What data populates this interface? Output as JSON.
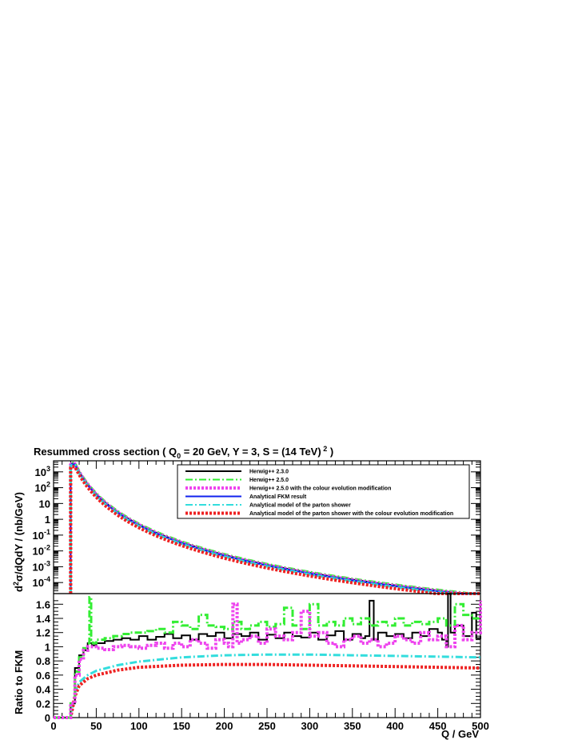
{
  "chart_data": [
    {
      "panel": "top",
      "type": "line",
      "title": "Resummed cross section ( Q",
      "title_sub": "0",
      "title_rest": " = 20 GeV, Y = 3, S = (14 TeV)",
      "title_sup": " 2",
      "title_end": " )",
      "ylabel_base": "d",
      "ylabel_sup": "2",
      "ylabel_rest": "σ/dQdY / (nb/GeV)",
      "yscale": "log",
      "xlim": [
        0,
        500
      ],
      "ylim": [
        2e-05,
        5000
      ],
      "ytick_labels": [
        {
          "v": 1000,
          "base": "10",
          "exp": "3"
        },
        {
          "v": 100,
          "base": "10",
          "exp": "2"
        },
        {
          "v": 10,
          "base": "10",
          "exp": ""
        },
        {
          "v": 1,
          "base": "1",
          "exp": ""
        },
        {
          "v": 0.1,
          "base": "10",
          "exp": "-1"
        },
        {
          "v": 0.01,
          "base": "10",
          "exp": "-2"
        },
        {
          "v": 0.001,
          "base": "10",
          "exp": "-3"
        },
        {
          "v": 0.0001,
          "base": "10",
          "exp": "-4"
        }
      ],
      "legend": [
        {
          "name": "Herwig++ 2.3.0",
          "color": "#000000",
          "style": "solid"
        },
        {
          "name": "Herwig++ 2.5.0",
          "color": "#33ee33",
          "style": "dashdot"
        },
        {
          "name": "Herwig++ 2.5.0 with the colour evolution modification",
          "color": "#ee44ee",
          "style": "dotted"
        },
        {
          "name": "Analytical FKM result",
          "color": "#1122ee",
          "style": "solid"
        },
        {
          "name": "Analytical model of the parton shower",
          "color": "#33dddd",
          "style": "dashdot"
        },
        {
          "name": "Analytical model of the parton shower with the colour evolution modification",
          "color": "#ee2222",
          "style": "dotted"
        }
      ],
      "model": {
        "threshold": 20,
        "peak": 3000,
        "peak_x": 25,
        "power": 6.4
      },
      "series_scale": [
        {
          "name": "Herwig++ 2.3.0",
          "factor": 1.12
        },
        {
          "name": "Herwig++ 2.5.0",
          "factor": 1.25
        },
        {
          "name": "Herwig++ 2.5.0 with the colour evolution modification",
          "factor": 1.08
        },
        {
          "name": "Analytical FKM result",
          "factor": 1.0
        },
        {
          "name": "Analytical model of the parton shower",
          "factor": 0.88
        },
        {
          "name": "Analytical model of the parton shower with the colour evolution modification",
          "factor": 0.7
        }
      ]
    },
    {
      "panel": "bottom",
      "type": "line",
      "xlabel": "Q / GeV",
      "ylabel": "Ratio to FKM",
      "xlim": [
        0,
        500
      ],
      "ylim": [
        0,
        1.75
      ],
      "xticks": [
        0,
        50,
        100,
        150,
        200,
        250,
        300,
        350,
        400,
        450,
        500
      ],
      "yticks": [
        0,
        0.2,
        0.4,
        0.6,
        0.8,
        1,
        1.2,
        1.4,
        1.6
      ],
      "ytick_labels": [
        "0",
        "0.2",
        "0.4",
        "0.6",
        "0.8",
        "1",
        "1.2",
        "1.4",
        "1.6"
      ],
      "series": [
        {
          "name": "Analytical model of the parton shower",
          "color": "#33dddd",
          "x": [
            20,
            25,
            30,
            40,
            50,
            75,
            100,
            150,
            200,
            250,
            300,
            350,
            400,
            450,
            500
          ],
          "values": [
            0,
            0.35,
            0.5,
            0.6,
            0.66,
            0.74,
            0.79,
            0.85,
            0.88,
            0.89,
            0.89,
            0.88,
            0.87,
            0.86,
            0.85
          ]
        },
        {
          "name": "Analytical model of the parton shower with the colour evolution modification",
          "color": "#ee2222",
          "x": [
            20,
            25,
            30,
            40,
            50,
            75,
            100,
            150,
            200,
            250,
            300,
            350,
            400,
            450,
            500
          ],
          "values": [
            0,
            0.3,
            0.45,
            0.55,
            0.6,
            0.67,
            0.71,
            0.74,
            0.75,
            0.75,
            0.74,
            0.73,
            0.72,
            0.71,
            0.7
          ]
        },
        {
          "name": "Herwig++ 2.3.0",
          "color": "#000000",
          "x": [
            20,
            25,
            30,
            35,
            40,
            45,
            50,
            60,
            70,
            80,
            90,
            100,
            110,
            120,
            130,
            140,
            150,
            160,
            170,
            180,
            190,
            200,
            210,
            220,
            230,
            240,
            250,
            260,
            270,
            280,
            290,
            300,
            310,
            320,
            330,
            340,
            350,
            360,
            365,
            370,
            375,
            380,
            390,
            400,
            410,
            420,
            430,
            440,
            450,
            455,
            460,
            462,
            465,
            470,
            480,
            490,
            495,
            500
          ],
          "values": [
            0.2,
            0.7,
            0.88,
            0.95,
            1.05,
            1.02,
            1.05,
            1.08,
            1.1,
            1.12,
            1.1,
            1.15,
            1.1,
            1.14,
            1.18,
            1.12,
            1.16,
            1.1,
            1.18,
            1.15,
            1.2,
            1.12,
            1.18,
            1.15,
            1.2,
            1.1,
            1.17,
            1.12,
            1.2,
            1.15,
            1.13,
            1.2,
            1.1,
            1.16,
            1.22,
            1.1,
            1.18,
            1.12,
            1.15,
            1.65,
            1.1,
            1.2,
            1.15,
            1.18,
            1.12,
            1.2,
            1.15,
            1.25,
            1.2,
            1.1,
            1.0,
            1.75,
            1.2,
            1.3,
            1.15,
            1.48,
            1.12,
            1.15
          ]
        },
        {
          "name": "Herwig++ 2.5.0",
          "color": "#33ee33",
          "x": [
            20,
            25,
            30,
            35,
            40,
            42,
            44,
            46,
            50,
            60,
            70,
            80,
            90,
            100,
            110,
            120,
            130,
            140,
            150,
            160,
            170,
            180,
            190,
            200,
            210,
            220,
            230,
            240,
            250,
            260,
            270,
            280,
            290,
            300,
            310,
            320,
            330,
            340,
            350,
            360,
            370,
            380,
            390,
            400,
            410,
            420,
            430,
            440,
            450,
            460,
            470,
            480,
            490,
            500
          ],
          "values": [
            0.2,
            0.65,
            0.85,
            0.98,
            1.05,
            1.7,
            1.1,
            1.05,
            1.1,
            1.12,
            1.15,
            1.18,
            1.2,
            1.2,
            1.22,
            1.25,
            1.2,
            1.35,
            1.3,
            1.25,
            1.45,
            1.3,
            1.28,
            1.25,
            1.35,
            1.25,
            1.3,
            1.35,
            1.28,
            1.32,
            1.55,
            1.3,
            1.25,
            1.6,
            1.3,
            1.35,
            1.3,
            1.4,
            1.32,
            1.4,
            1.3,
            1.35,
            1.3,
            1.4,
            1.3,
            1.35,
            1.32,
            1.35,
            1.4,
            1.3,
            1.6,
            1.45,
            1.4,
            1.35
          ]
        },
        {
          "name": "Herwig++ 2.5.0 with the colour evolution modification",
          "color": "#ee44ee",
          "x": [
            20,
            25,
            30,
            35,
            40,
            50,
            60,
            70,
            80,
            90,
            100,
            110,
            120,
            130,
            140,
            150,
            160,
            170,
            180,
            190,
            200,
            205,
            210,
            215,
            220,
            230,
            240,
            250,
            260,
            270,
            280,
            290,
            300,
            310,
            320,
            330,
            340,
            350,
            360,
            370,
            380,
            390,
            400,
            410,
            420,
            430,
            440,
            450,
            460,
            470,
            480,
            490,
            500
          ],
          "values": [
            0.2,
            0.6,
            0.82,
            0.95,
            1.0,
            0.98,
            0.96,
            1.0,
            1.02,
            1.0,
            0.98,
            1.02,
            1.05,
            0.98,
            1.05,
            1.0,
            1.1,
            1.05,
            0.98,
            1.1,
            1.05,
            1.0,
            1.6,
            1.05,
            1.1,
            1.15,
            1.05,
            1.25,
            1.15,
            1.1,
            1.2,
            1.5,
            1.15,
            1.2,
            1.05,
            1.0,
            1.1,
            1.15,
            1.05,
            1.1,
            1.0,
            1.05,
            1.15,
            1.1,
            1.05,
            1.2,
            1.1,
            1.15,
            1.0,
            1.3,
            1.1,
            1.2,
            1.65
          ]
        }
      ]
    }
  ]
}
